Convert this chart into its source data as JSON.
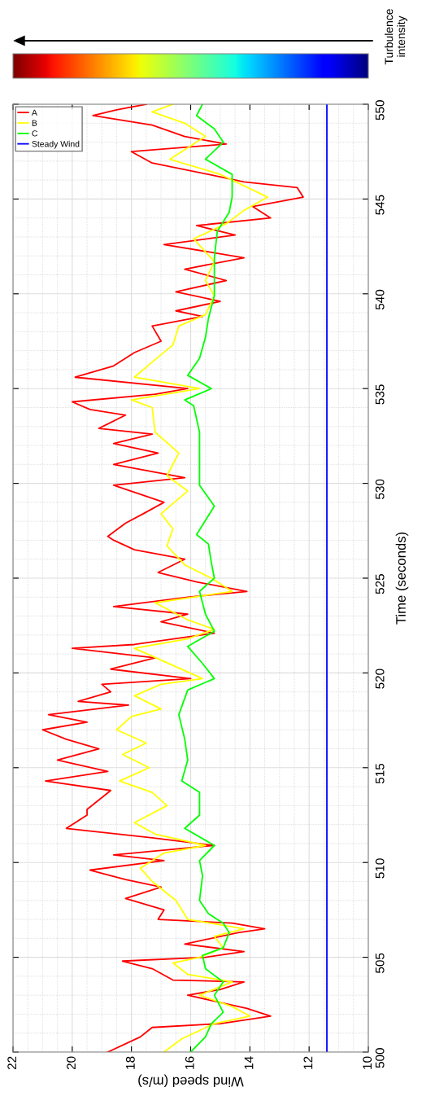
{
  "chart_data": {
    "type": "line",
    "xlabel": "Wind speed (m/s)",
    "ylabel": "Time (seconds)",
    "xlim": [
      22,
      10
    ],
    "xticks": [
      22,
      20,
      18,
      16,
      14,
      12,
      10
    ],
    "ylim": [
      500,
      550
    ],
    "yticks": [
      500,
      505,
      510,
      515,
      520,
      525,
      530,
      535,
      540,
      545,
      550
    ],
    "grid": true,
    "legend": "top left",
    "line_style": "solid",
    "annotations": [
      "Turbulence\nintensity"
    ],
    "series": [
      {
        "name": "A",
        "color": "#ff0000",
        "values": [
          500.0,
          500.8,
          501.3,
          501.5,
          501.9,
          502.3,
          503.0,
          503.3,
          503.7,
          503.8,
          504.4,
          504.8,
          505.0,
          505.3,
          505.7,
          506.3,
          506.5,
          506.8,
          507.0,
          507.5,
          508.1,
          508.7,
          509.1,
          509.6,
          510.1,
          510.4,
          510.9,
          511.3,
          511.8,
          512.5,
          512.8,
          513.8,
          514.3,
          514.8,
          515.4,
          516.0,
          516.5,
          517.0,
          517.4,
          517.8,
          518.3,
          518.5,
          519.0,
          519.4,
          519.7,
          520.2,
          520.8,
          521.3,
          521.5,
          522.1,
          522.7,
          523.1,
          523.5,
          524.0,
          524.3,
          524.8,
          525.3,
          526.0,
          526.5,
          527.0,
          527.2,
          527.9,
          528.4,
          529.0,
          529.9,
          530.3,
          531.0,
          531.6,
          532.1,
          532.6,
          532.9,
          533.6,
          533.9,
          534.3,
          534.7,
          535.0,
          535.6,
          536.2,
          536.9,
          537.5,
          538.3,
          538.8,
          539.1,
          539.6,
          540.1,
          540.7,
          541.3,
          541.9,
          542.6,
          543.1,
          543.6,
          544.0,
          544.6,
          545.1,
          545.6,
          545.9,
          546.3,
          546.9,
          547.5,
          547.9,
          548.3,
          548.9,
          549.4,
          549.7,
          550.0
        ],
        "x": [
          18.8,
          17.7,
          17.3,
          15.0,
          13.3,
          14.1,
          16.1,
          15.0,
          14.2,
          16.6,
          17.3,
          18.3,
          15.5,
          14.2,
          16.2,
          14.4,
          13.5,
          14.6,
          17.1,
          16.9,
          18.2,
          17.0,
          18.2,
          19.4,
          16.9,
          18.6,
          15.2,
          17.3,
          20.2,
          19.5,
          19.5,
          18.7,
          20.9,
          18.8,
          20.5,
          19.1,
          20.2,
          21.0,
          19.5,
          20.8,
          18.1,
          19.8,
          18.7,
          19.0,
          16.0,
          18.7,
          17.2,
          20.0,
          17.9,
          15.2,
          17.0,
          16.1,
          18.6,
          16.1,
          14.1,
          15.8,
          17.1,
          16.2,
          17.9,
          18.6,
          18.8,
          18.2,
          17.6,
          16.9,
          18.6,
          16.2,
          18.6,
          17.1,
          18.6,
          17.3,
          19.1,
          18.2,
          19.4,
          20.0,
          17.2,
          16.1,
          19.9,
          18.6,
          17.9,
          17.0,
          17.3,
          15.6,
          16.5,
          15.0,
          16.5,
          14.8,
          16.2,
          14.2,
          16.9,
          14.5,
          15.8,
          13.3,
          13.9,
          12.2,
          12.4,
          14.2,
          15.4,
          17.3,
          18.0,
          14.8,
          16.2,
          17.3,
          19.3,
          18.5,
          17.5
        ]
      },
      {
        "name": "B",
        "color": "#ffff00",
        "values": [
          500.0,
          500.7,
          501.5,
          501.9,
          502.4,
          503.0,
          503.7,
          504.1,
          504.7,
          505.0,
          505.5,
          506.1,
          506.5,
          507.0,
          508.0,
          509.0,
          509.7,
          510.5,
          510.9,
          511.5,
          512.1,
          513.0,
          513.7,
          514.3,
          515.0,
          515.7,
          516.3,
          517.0,
          517.7,
          518.1,
          518.8,
          519.4,
          519.7,
          520.4,
          521.3,
          521.8,
          522.3,
          522.8,
          523.7,
          524.3,
          525.0,
          525.7,
          526.7,
          527.6,
          528.4,
          529.6,
          530.4,
          531.6,
          532.7,
          534.0,
          534.4,
          535.0,
          535.6,
          536.4,
          537.3,
          538.3,
          538.9,
          539.9,
          540.7,
          541.7,
          542.9,
          543.7,
          544.4,
          545.1,
          545.7,
          546.3,
          547.1,
          547.7,
          548.3,
          549.0,
          549.6,
          550.0
        ],
        "x": [
          16.9,
          16.3,
          15.2,
          14.0,
          14.6,
          15.7,
          14.6,
          16.1,
          16.6,
          15.7,
          14.9,
          15.2,
          14.2,
          16.1,
          16.5,
          17.3,
          17.7,
          16.9,
          15.5,
          17.2,
          17.9,
          16.8,
          17.3,
          18.4,
          17.4,
          18.3,
          17.5,
          18.5,
          18.0,
          17.0,
          17.9,
          17.0,
          15.6,
          16.6,
          17.9,
          16.1,
          15.2,
          16.1,
          17.2,
          14.6,
          15.3,
          16.2,
          16.8,
          16.6,
          17.0,
          16.1,
          16.8,
          16.4,
          17.2,
          17.3,
          18.0,
          15.7,
          17.9,
          17.3,
          16.6,
          16.4,
          15.5,
          15.2,
          15.5,
          15.2,
          15.9,
          14.8,
          14.2,
          13.4,
          14.2,
          15.0,
          16.7,
          16.1,
          15.5,
          16.2,
          17.3,
          16.6
        ]
      },
      {
        "name": "C",
        "color": "#00ff00",
        "values": [
          500.0,
          500.8,
          501.5,
          502.1,
          503.0,
          503.7,
          504.4,
          505.1,
          505.5,
          506.3,
          506.8,
          507.3,
          508.0,
          509.3,
          510.1,
          510.9,
          511.8,
          512.5,
          513.7,
          514.3,
          515.4,
          516.5,
          517.8,
          519.1,
          519.7,
          520.5,
          521.4,
          522.2,
          523.1,
          524.3,
          525.0,
          525.8,
          526.8,
          527.3,
          528.8,
          529.9,
          531.3,
          532.7,
          534.1,
          534.4,
          535.0,
          535.7,
          536.6,
          537.7,
          538.7,
          539.9,
          540.9,
          541.9,
          543.3,
          544.3,
          545.1,
          546.3,
          547.1,
          548.0,
          548.7,
          549.4,
          550.0
        ],
        "x": [
          16.0,
          15.5,
          15.3,
          14.9,
          15.2,
          14.9,
          15.5,
          15.6,
          14.9,
          14.7,
          14.9,
          15.4,
          15.7,
          15.6,
          15.7,
          15.2,
          16.2,
          15.7,
          15.7,
          16.3,
          16.1,
          16.2,
          16.4,
          16.1,
          15.2,
          15.6,
          16.1,
          15.2,
          15.5,
          15.7,
          15.2,
          15.3,
          15.4,
          15.8,
          15.2,
          15.7,
          15.7,
          15.7,
          15.9,
          16.2,
          15.3,
          16.1,
          15.7,
          15.5,
          15.4,
          15.2,
          15.2,
          15.2,
          15.1,
          14.7,
          14.6,
          14.6,
          15.5,
          14.9,
          15.2,
          15.8,
          15.6
        ]
      },
      {
        "name": "Steady Wind",
        "color": "#0000ff",
        "x": [
          11.4,
          11.4
        ],
        "values": [
          500,
          550
        ]
      }
    ]
  }
}
